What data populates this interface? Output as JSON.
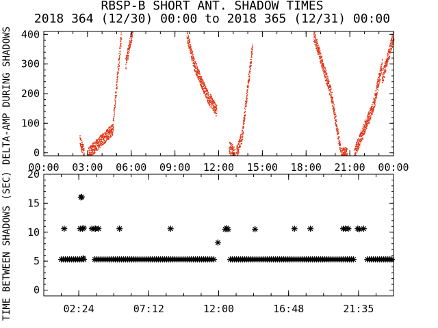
{
  "title": {
    "line1": "RBSP-B SHORT ANT. SHADOW TIMES",
    "line2": "2018 364 (12/30) 00:00 to 2018 365 (12/31) 00:00"
  },
  "colors": {
    "data_top": "#e03010",
    "data_bottom": "#000000",
    "axis": "#000000"
  },
  "chart_data": [
    {
      "type": "scatter",
      "ylabel": "DELTA-AMP DURING SHADOWS",
      "xlim_hours": [
        0,
        24
      ],
      "ylim": [
        -10,
        410
      ],
      "x_tick_labels": [
        "00:00",
        "03:00",
        "06:00",
        "09:00",
        "12:00",
        "15:00",
        "18:00",
        "21:00",
        "00:00"
      ],
      "y_ticks": [
        0,
        100,
        200,
        300,
        400
      ],
      "marker": "dot",
      "segments": [
        {
          "x_start": 2.45,
          "x_end": 2.75,
          "y_start": 40,
          "y_end": 0
        },
        {
          "x_start": 3.05,
          "x_end": 4.7,
          "y_start": 0,
          "y_end": 80
        },
        {
          "x_start": 4.7,
          "x_end": 5.3,
          "y_start": 80,
          "y_end": 400
        },
        {
          "x_start": 5.6,
          "x_end": 6.1,
          "y_start": 300,
          "y_end": 420
        },
        {
          "x_start": 9.8,
          "x_end": 10.3,
          "y_start": 400,
          "y_end": 300
        },
        {
          "x_start": 10.3,
          "x_end": 11.4,
          "y_start": 300,
          "y_end": 170
        },
        {
          "x_start": 11.4,
          "x_end": 11.85,
          "y_start": 180,
          "y_end": 140
        },
        {
          "x_start": 12.7,
          "x_end": 13.1,
          "y_start": 20,
          "y_end": 0
        },
        {
          "x_start": 13.2,
          "x_end": 13.6,
          "y_start": 0,
          "y_end": 60
        },
        {
          "x_start": 13.6,
          "x_end": 14.3,
          "y_start": 60,
          "y_end": 360
        },
        {
          "x_start": 18.5,
          "x_end": 19.7,
          "y_start": 400,
          "y_end": 200
        },
        {
          "x_start": 19.7,
          "x_end": 20.35,
          "y_start": 200,
          "y_end": 10
        },
        {
          "x_start": 20.4,
          "x_end": 20.8,
          "y_start": 0,
          "y_end": 0
        },
        {
          "x_start": 21.3,
          "x_end": 22.6,
          "y_start": 0,
          "y_end": 160
        },
        {
          "x_start": 22.6,
          "x_end": 23.2,
          "y_start": 160,
          "y_end": 300
        },
        {
          "x_start": 23.2,
          "x_end": 24.0,
          "y_start": 250,
          "y_end": 400
        }
      ]
    },
    {
      "type": "scatter",
      "ylabel": "TIME BETWEEN SHADOWS (SEC)",
      "xlim_hours": [
        0,
        24
      ],
      "ylim": [
        -1,
        20
      ],
      "x_tick_labels": [
        "02:24",
        "07:12",
        "12:00",
        "16:48",
        "21:35"
      ],
      "y_ticks": [
        0,
        5,
        10,
        15,
        20
      ],
      "marker": "asterisk",
      "baseline_value": 5.3,
      "baseline_ranges_hours": [
        [
          1.2,
          2.8
        ],
        [
          3.5,
          11.8
        ],
        [
          12.8,
          21.3
        ],
        [
          22.2,
          24.0
        ]
      ],
      "points": [
        {
          "x": 1.4,
          "y": 10.6
        },
        {
          "x": 2.55,
          "y": 16.0
        },
        {
          "x": 2.6,
          "y": 16.1
        },
        {
          "x": 2.5,
          "y": 10.6
        },
        {
          "x": 2.65,
          "y": 10.6
        },
        {
          "x": 2.75,
          "y": 10.7
        },
        {
          "x": 2.7,
          "y": 5.5
        },
        {
          "x": 3.3,
          "y": 10.6
        },
        {
          "x": 3.45,
          "y": 10.6
        },
        {
          "x": 3.55,
          "y": 10.6
        },
        {
          "x": 3.75,
          "y": 10.6
        },
        {
          "x": 5.2,
          "y": 10.6
        },
        {
          "x": 8.7,
          "y": 10.6
        },
        {
          "x": 11.95,
          "y": 8.2
        },
        {
          "x": 12.45,
          "y": 10.5
        },
        {
          "x": 12.55,
          "y": 10.7
        },
        {
          "x": 12.65,
          "y": 10.5
        },
        {
          "x": 14.5,
          "y": 10.5
        },
        {
          "x": 17.2,
          "y": 10.6
        },
        {
          "x": 18.3,
          "y": 10.6
        },
        {
          "x": 20.55,
          "y": 10.6
        },
        {
          "x": 20.7,
          "y": 10.6
        },
        {
          "x": 20.9,
          "y": 10.6
        },
        {
          "x": 21.55,
          "y": 10.6
        },
        {
          "x": 21.65,
          "y": 10.5
        },
        {
          "x": 21.95,
          "y": 10.6
        }
      ]
    }
  ]
}
